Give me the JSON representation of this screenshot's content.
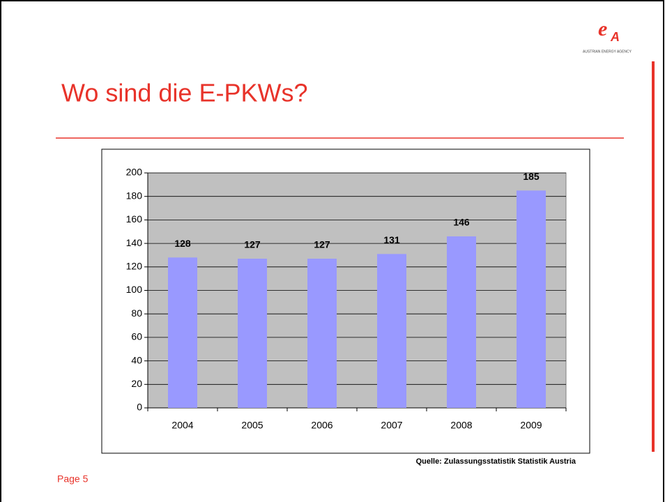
{
  "slide": {
    "title": "Wo sind die E-PKWs?",
    "logo": "AUSTRIAN ENERGY AGENCY",
    "source": "Quelle: Zulassungsstatistik Statistik Austria",
    "page": "Page 5"
  },
  "chart_data": {
    "type": "bar",
    "categories": [
      "2004",
      "2005",
      "2006",
      "2007",
      "2008",
      "2009"
    ],
    "values": [
      128,
      127,
      127,
      131,
      146,
      185
    ],
    "color": "#9999ff",
    "ylim": [
      0,
      200
    ],
    "yticks": [
      0,
      20,
      40,
      60,
      80,
      100,
      120,
      140,
      160,
      180,
      200
    ],
    "grid": true,
    "plot_background": "#c0c0c0"
  }
}
